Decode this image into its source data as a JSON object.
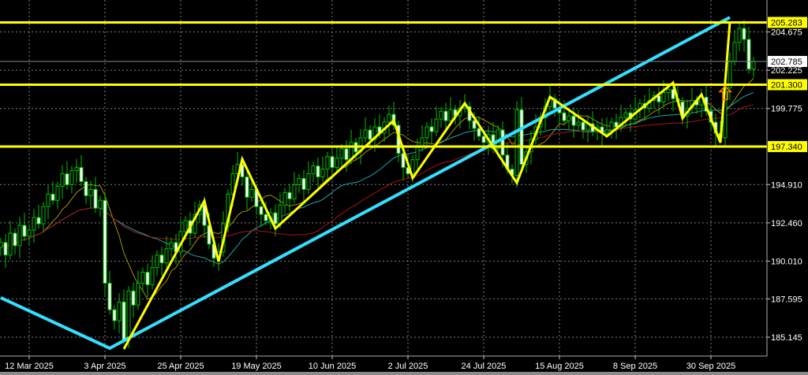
{
  "chart_data": {
    "type": "candlestick",
    "grid": true,
    "background": "#000000",
    "colors": {
      "bull_candle": "#00c000",
      "bear_candle": "#ffffff",
      "zigzag": "#ffff00",
      "trendline": "#33e0ff",
      "levels": "#ffff00",
      "current_price_line": "#7f8c99",
      "ma_fast": "#a09400",
      "ma_mid": "#1fa6a6",
      "ma_slow": "#b01010",
      "arrow": "#ff7f00",
      "grid": "#7f7f7f"
    },
    "x_start_date": "2025-03-04",
    "x_ticks": [
      {
        "date": "2025-03-12",
        "label": "12 Mar 2025"
      },
      {
        "date": "2025-04-03",
        "label": "3 Apr 2025"
      },
      {
        "date": "2025-04-25",
        "label": "25 Apr 2025"
      },
      {
        "date": "2025-05-19",
        "label": "19 May 2025"
      },
      {
        "date": "2025-06-10",
        "label": "10 Jun 2025"
      },
      {
        "date": "2025-07-02",
        "label": "2 Jul 2025"
      },
      {
        "date": "2025-07-24",
        "label": "24 Jul 2025"
      },
      {
        "date": "2025-08-15",
        "label": "15 Aug 2025"
      },
      {
        "date": "2025-09-08",
        "label": "8 Sep 2025"
      },
      {
        "date": "2025-09-30",
        "label": "30 Sep 2025"
      }
    ],
    "y_ticks": [
      "204.675",
      "202.225",
      "199.775",
      "194.910",
      "192.460",
      "190.010",
      "187.595",
      "185.145"
    ],
    "ylim": [
      184.0,
      206.25
    ],
    "closes": [
      191.2,
      190.4,
      191.8,
      191.0,
      192.3,
      191.6,
      192.0,
      192.8,
      192.4,
      193.5,
      194.3,
      193.9,
      194.8,
      195.6,
      194.9,
      195.8,
      196.0,
      195.1,
      194.2,
      194.6,
      193.4,
      193.9,
      188.6,
      186.9,
      186.2,
      187.4,
      185.0,
      188.1,
      187.2,
      188.6,
      189.3,
      188.5,
      189.6,
      190.4,
      189.9,
      190.8,
      191.2,
      190.6,
      191.9,
      192.6,
      191.8,
      193.0,
      193.6,
      192.3,
      191.1,
      190.2,
      190.6,
      192.4,
      194.3,
      195.6,
      196.2,
      195.4,
      194.1,
      194.6,
      193.5,
      193.0,
      192.6,
      193.1,
      192.4,
      193.6,
      194.4,
      194.0,
      194.9,
      195.3,
      194.6,
      195.6,
      196.1,
      195.4,
      195.9,
      196.7,
      196.0,
      196.6,
      197.2,
      196.5,
      197.6,
      197.0,
      197.9,
      198.4,
      197.8,
      198.6,
      198.2,
      198.9,
      199.4,
      198.7,
      196.9,
      196.0,
      195.6,
      196.5,
      197.3,
      197.9,
      198.6,
      198.3,
      199.1,
      199.6,
      199.0,
      199.7,
      199.3,
      199.8,
      199.9,
      199.0,
      198.5,
      198.0,
      197.6,
      198.1,
      197.2,
      198.4,
      196.8,
      195.9,
      195.5,
      199.7,
      196.2,
      197.0,
      197.8,
      198.6,
      199.2,
      199.9,
      200.4,
      199.8,
      199.5,
      199.0,
      199.3,
      198.7,
      198.9,
      198.4,
      198.8,
      198.3,
      198.6,
      198.2,
      198.4,
      198.9,
      198.6,
      199.2,
      199.5,
      199.1,
      199.7,
      200.1,
      199.8,
      200.3,
      200.6,
      200.2,
      200.8,
      201.0,
      200.4,
      200.2,
      199.3,
      199.8,
      200.3,
      200.0,
      200.5,
      199.6,
      198.9,
      198.2,
      197.9,
      201.1,
      202.8,
      204.0,
      204.9,
      204.2,
      202.3,
      202.785
    ],
    "moving_averages": [
      {
        "key": "ma_fast",
        "period": 10
      },
      {
        "key": "ma_mid",
        "period": 25
      },
      {
        "key": "ma_slow",
        "period": 45
      }
    ],
    "zigzag": [
      {
        "date": "2025-04-09",
        "price": 184.39
      },
      {
        "date": "2025-05-02",
        "price": 193.87
      },
      {
        "date": "2025-05-07",
        "price": 189.98
      },
      {
        "date": "2025-05-14",
        "price": 196.54
      },
      {
        "date": "2025-05-23",
        "price": 192.1
      },
      {
        "date": "2025-06-27",
        "price": 199.01
      },
      {
        "date": "2025-07-03",
        "price": 195.33
      },
      {
        "date": "2025-07-18",
        "price": 200.11
      },
      {
        "date": "2025-08-04",
        "price": 195.02
      },
      {
        "date": "2025-08-13",
        "price": 200.52
      },
      {
        "date": "2025-08-29",
        "price": 198.0
      },
      {
        "date": "2025-09-18",
        "price": 201.42
      },
      {
        "date": "2025-09-22",
        "price": 199.16
      },
      {
        "date": "2025-09-26",
        "price": 200.67
      },
      {
        "date": "2025-10-02",
        "price": 197.59
      },
      {
        "date": "2025-10-06",
        "price": 205.31
      }
    ],
    "trendline": [
      {
        "date": "2025-03-04",
        "price": 187.67
      },
      {
        "date": "2025-04-04",
        "price": 184.44
      },
      {
        "date": "2025-10-06",
        "price": 205.6
      }
    ],
    "levels": [
      {
        "price": 205.283,
        "label": "205.283"
      },
      {
        "price": 201.3,
        "label": "201.300"
      },
      {
        "price": 197.34,
        "label": "197.340"
      }
    ],
    "current_price": {
      "price": 202.785,
      "label": "202.785"
    },
    "arrow": {
      "type": "arrow-up",
      "date": "2025-10-06",
      "price": 200.7
    }
  }
}
